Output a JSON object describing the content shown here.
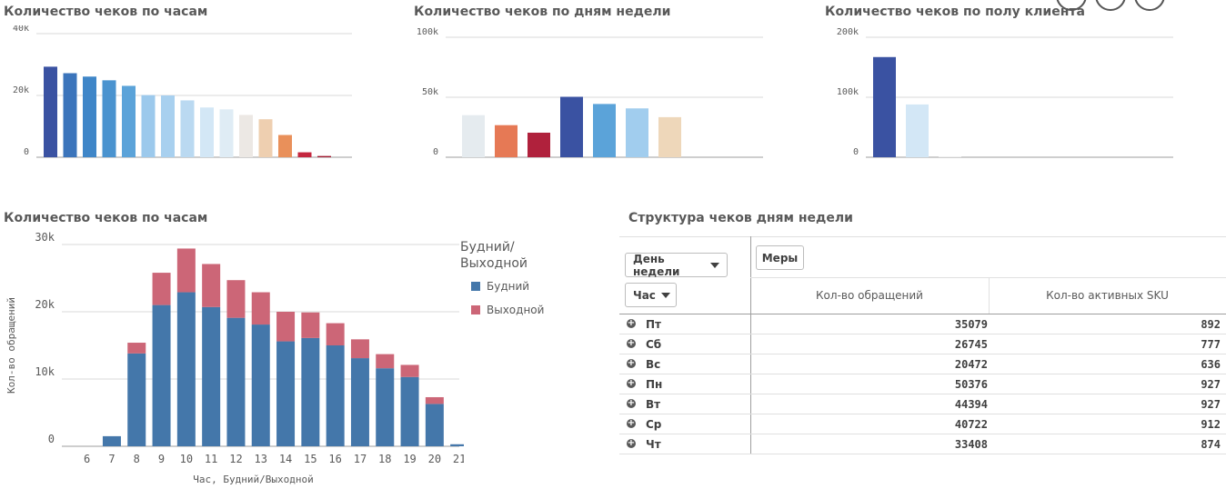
{
  "titles": {
    "c1": "Количество чеков по часам",
    "c2": "Количество чеков по дням недели",
    "c3": "Количество чеков по полу клиента",
    "c4": "Количество чеков по часам",
    "table": "Структура чеков дням недели"
  },
  "chart_data": [
    {
      "id": "hours_small",
      "type": "bar",
      "title": "Количество чеков по часам",
      "ylim": [
        0,
        40000
      ],
      "ticks": [
        {
          "v": 0,
          "label": "0"
        },
        {
          "v": 20000,
          "label": "20k"
        },
        {
          "v": 40000,
          "label": "40k"
        }
      ],
      "values": [
        29300,
        27200,
        26100,
        24900,
        23100,
        20100,
        20000,
        18400,
        16100,
        15500,
        13700,
        12300,
        7200,
        1600,
        400
      ],
      "colors": [
        "#3a52a2",
        "#3b74bb",
        "#3f86c8",
        "#4a93cf",
        "#5ba3d9",
        "#9cc9ec",
        "#a8d0ef",
        "#bad9f1",
        "#d3e7f6",
        "#dfecf5",
        "#ece8e4",
        "#eecfb0",
        "#e9905a",
        "#c4263e",
        "#a0182f"
      ]
    },
    {
      "id": "weekdays",
      "type": "bar",
      "title": "Количество чеков по дням недели",
      "ylim": [
        0,
        100000
      ],
      "ticks": [
        {
          "v": 0,
          "label": "0"
        },
        {
          "v": 50000,
          "label": "50k"
        },
        {
          "v": 100000,
          "label": "100k"
        }
      ],
      "values": [
        35079,
        26745,
        20472,
        50376,
        44394,
        40722,
        33408
      ],
      "colors": [
        "#e5ebef",
        "#e67955",
        "#b0213c",
        "#3a52a2",
        "#5ba3d9",
        "#a1cdee",
        "#eed7ba"
      ]
    },
    {
      "id": "gender",
      "type": "bar",
      "title": "Количество чеков по полу клиента",
      "ylim": [
        0,
        200000
      ],
      "ticks": [
        {
          "v": 0,
          "label": "0"
        },
        {
          "v": 100000,
          "label": "100k"
        },
        {
          "v": 200000,
          "label": "200k"
        }
      ],
      "values": [
        167000,
        88000,
        700
      ],
      "colors": [
        "#3a52a2",
        "#d3e7f6",
        "#e4e4e4"
      ]
    },
    {
      "id": "hours_stacked",
      "type": "bar",
      "title": "Количество чеков по часам",
      "xlabel": "Час, Будний/Выходной",
      "ylabel": "Кол-во обращений",
      "ylim": [
        0,
        30000
      ],
      "ticks": [
        {
          "v": 0,
          "label": "0"
        },
        {
          "v": 10000,
          "label": "10k"
        },
        {
          "v": 20000,
          "label": "20k"
        },
        {
          "v": 30000,
          "label": "30k"
        }
      ],
      "categories": [
        "6",
        "7",
        "8",
        "9",
        "10",
        "11",
        "12",
        "13",
        "14",
        "15",
        "16",
        "17",
        "18",
        "19",
        "20",
        "21"
      ],
      "series": [
        {
          "name": "Будний",
          "color": "#4477aa",
          "values": [
            0,
            1500,
            13800,
            21000,
            22900,
            20700,
            19100,
            18100,
            15600,
            16100,
            15000,
            13100,
            11600,
            10300,
            6300,
            300
          ]
        },
        {
          "name": "Выходной",
          "color": "#cc6677",
          "values": [
            0,
            0,
            1600,
            4800,
            6500,
            6400,
            5600,
            4800,
            4400,
            3800,
            3300,
            2800,
            2100,
            1800,
            1000,
            0
          ]
        }
      ],
      "legend_title": "Будний/Выходной"
    }
  ],
  "table": {
    "dim1_label": "День недели",
    "dim2_label": "Час",
    "measures_label": "Меры",
    "col1": "Кол-во обращений",
    "col2": "Кол-во активных SKU",
    "rows": [
      {
        "day": "Пт",
        "v1": "35079",
        "v2": "892"
      },
      {
        "day": "Сб",
        "v1": "26745",
        "v2": "777"
      },
      {
        "day": "Вс",
        "v1": "20472",
        "v2": "636"
      },
      {
        "day": "Пн",
        "v1": "50376",
        "v2": "927"
      },
      {
        "day": "Вт",
        "v1": "44394",
        "v2": "927"
      },
      {
        "day": "Ср",
        "v1": "40722",
        "v2": "912"
      },
      {
        "day": "Чт",
        "v1": "33408",
        "v2": "874"
      }
    ]
  }
}
